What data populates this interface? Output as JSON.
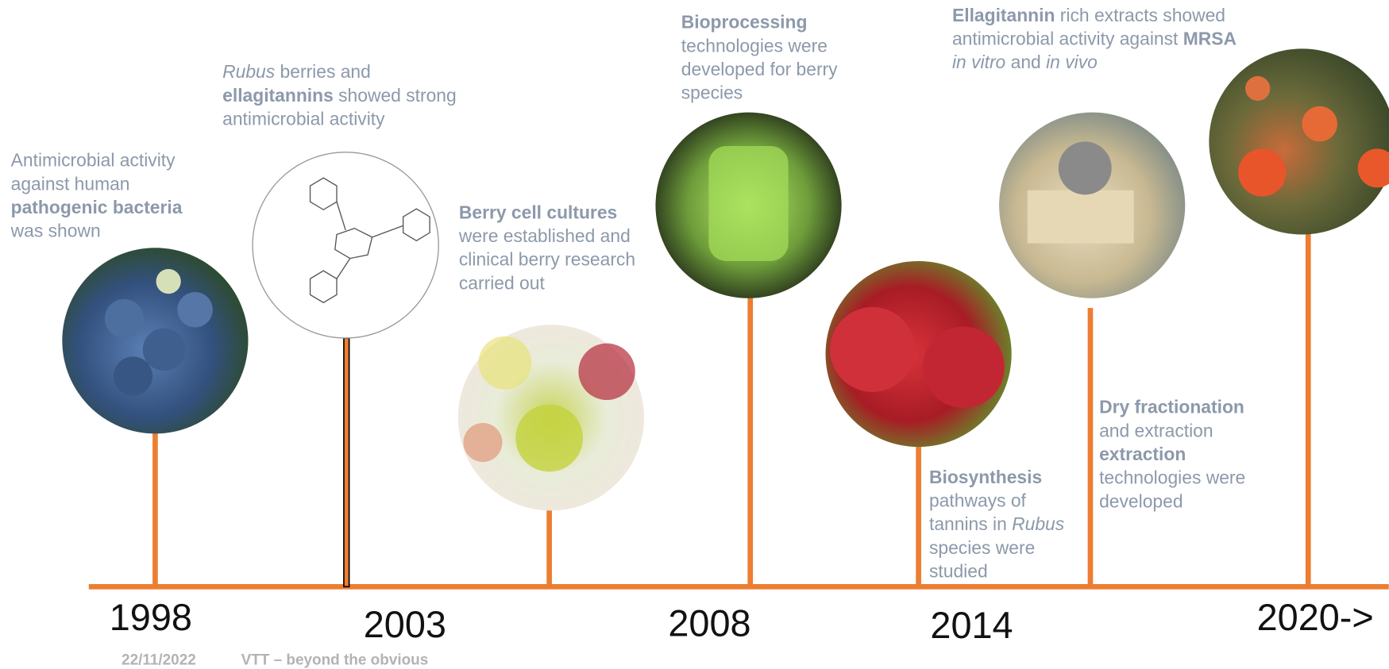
{
  "events": [
    {
      "year": "1998",
      "lines": [
        [
          {
            "text": "Antimicrobial activity"
          }
        ],
        [
          {
            "text": "against human"
          }
        ],
        [
          {
            "text": "pathogenic bacteria",
            "style": "bold"
          }
        ],
        [
          {
            "text": "was shown"
          }
        ]
      ]
    },
    {
      "year": "2003",
      "lines": [
        [
          {
            "text": "Rubus",
            "style": "italic"
          },
          {
            "text": " berries and"
          }
        ],
        [
          {
            "text": "ellagitannins",
            "style": "bold"
          },
          {
            "text": " showed strong"
          }
        ],
        [
          {
            "text": "antimicrobial activity"
          }
        ]
      ]
    },
    {
      "year": null,
      "lines": [
        [
          {
            "text": "Berry cell cultures",
            "style": "bold"
          }
        ],
        [
          {
            "text": "were established and"
          }
        ],
        [
          {
            "text": "clinical berry research"
          }
        ],
        [
          {
            "text": "carried out"
          }
        ]
      ]
    },
    {
      "year": "2008",
      "lines": [
        [
          {
            "text": "Bioprocessing",
            "style": "bold"
          }
        ],
        [
          {
            "text": "technologies were"
          }
        ],
        [
          {
            "text": "developed for berry"
          }
        ],
        [
          {
            "text": "species"
          }
        ]
      ]
    },
    {
      "year": "2014",
      "lines": [
        [
          {
            "text": "Biosynthesis",
            "style": "bold"
          }
        ],
        [
          {
            "text": "pathways of"
          }
        ],
        [
          {
            "text": "tannins in "
          },
          {
            "text": "Rubus",
            "style": "italic"
          }
        ],
        [
          {
            "text": "species were"
          }
        ],
        [
          {
            "text": "studied"
          }
        ]
      ]
    },
    {
      "year": null,
      "lines": [
        [
          {
            "text": "Dry fractionation",
            "style": "bold"
          }
        ],
        [
          {
            "text": "and extraction"
          }
        ],
        [
          {
            "text": "extraction",
            "style": "bold"
          }
        ],
        [
          {
            "text": "technologies were"
          }
        ],
        [
          {
            "text": "developed"
          }
        ]
      ]
    },
    {
      "year": "2020->",
      "lines": [
        [
          {
            "text": "Ellagitannin",
            "style": "bold"
          },
          {
            "text": " rich extracts showed"
          }
        ],
        [
          {
            "text": "antimicrobial activity against "
          },
          {
            "text": "MRSA",
            "style": "bold"
          }
        ],
        [
          {
            "text": "in vitro",
            "style": "italic"
          },
          {
            "text": " and "
          },
          {
            "text": "in vivo",
            "style": "italic"
          }
        ]
      ]
    }
  ],
  "footer": {
    "date": "22/11/2022",
    "tagline": "VTT – beyond the obvious"
  }
}
